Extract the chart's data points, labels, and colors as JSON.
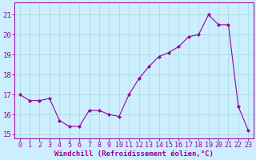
{
  "x": [
    0,
    1,
    2,
    3,
    4,
    5,
    6,
    7,
    8,
    9,
    10,
    11,
    12,
    13,
    14,
    15,
    16,
    17,
    18,
    19,
    20,
    21,
    22,
    23
  ],
  "y": [
    17.0,
    16.7,
    16.7,
    16.8,
    15.7,
    15.4,
    15.4,
    16.2,
    16.2,
    16.0,
    15.9,
    17.0,
    17.8,
    18.4,
    18.9,
    19.1,
    19.4,
    19.9,
    20.0,
    21.0,
    20.5,
    20.5,
    16.4,
    15.2
  ],
  "line_color": "#990099",
  "marker_color": "#990099",
  "bg_color": "#cceeff",
  "grid_color": "#aadddd",
  "xlabel": "Windchill (Refroidissement éolien,°C)",
  "ylim": [
    14.8,
    21.6
  ],
  "xlim": [
    -0.5,
    23.5
  ],
  "yticks": [
    15,
    16,
    17,
    18,
    19,
    20,
    21
  ],
  "xticks": [
    0,
    1,
    2,
    3,
    4,
    5,
    6,
    7,
    8,
    9,
    10,
    11,
    12,
    13,
    14,
    15,
    16,
    17,
    18,
    19,
    20,
    21,
    22,
    23
  ],
  "xlabel_fontsize": 6.5,
  "tick_fontsize": 6.0
}
